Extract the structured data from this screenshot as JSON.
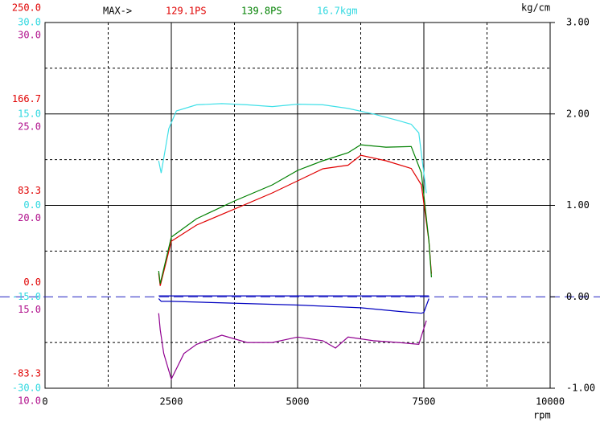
{
  "chart_data": {
    "type": "line",
    "max_label": "MAX->",
    "max_values": [
      {
        "text": "129.1PS",
        "color": "#e00000"
      },
      {
        "text": "139.8PS",
        "color": "#008000"
      },
      {
        "text": "16.7kgm",
        "color": "#30d8e0"
      }
    ],
    "xlabel": "rpm",
    "y2label": "kg/cm",
    "xlim": [
      0,
      10000
    ],
    "xticks": [
      0,
      2500,
      5000,
      7500,
      10000
    ],
    "xminorticks": [
      1250,
      3750,
      6250,
      8750
    ],
    "axes": [
      {
        "color": "#e00000",
        "ylim": [
          -83.3,
          250
        ],
        "yticks": [
          {
            "value": 250,
            "label": "250.0"
          },
          166.7,
          83.3,
          {
            "value": 0,
            "label": "0.0"
          },
          -83.3
        ]
      },
      {
        "color": "#30d8e0",
        "ylim": [
          -30,
          30
        ],
        "yticks": [
          {
            "value": 30,
            "label": "30.0"
          },
          {
            "value": 15,
            "label": "15.0"
          },
          {
            "value": 0,
            "label": "0.0"
          },
          {
            "value": -15,
            "label": "-15.0"
          },
          {
            "value": -30,
            "label": "-30.0"
          }
        ]
      },
      {
        "color": "#b0108c",
        "ylim": [
          10,
          30
        ],
        "yticks": [
          {
            "value": 30,
            "label": "30.0"
          },
          {
            "value": 25,
            "label": "25.0"
          },
          {
            "value": 20,
            "label": "20.0"
          },
          {
            "value": 15,
            "label": "15.0"
          },
          {
            "value": 10,
            "label": "10.0"
          }
        ]
      }
    ],
    "y2lim": [
      -1,
      3
    ],
    "y2ticks": [
      {
        "value": 3,
        "label": "3.00"
      },
      {
        "value": 2,
        "label": "2.00"
      },
      {
        "value": 1,
        "label": "1.00"
      },
      {
        "value": 0,
        "label": "0.00"
      },
      {
        "value": -1,
        "label": "-1.00"
      }
    ],
    "y2minorticks": [
      2.5,
      1.5,
      0.5,
      -0.5
    ],
    "zero_line_color": "#2020c0",
    "series": [
      {
        "color": "#e00000",
        "axis": 0,
        "x": [
          2250,
          2280,
          2500,
          3000,
          3750,
          4500,
          5000,
          5500,
          6000,
          6250,
          6750,
          7250,
          7450,
          7600,
          7650
        ],
        "values": [
          21.4,
          10,
          50.7,
          65.4,
          80,
          94.7,
          105.7,
          116.7,
          120,
          129,
          124,
          117,
          102,
          50.7,
          21
        ]
      },
      {
        "color": "#008000",
        "axis": 0,
        "x": [
          2250,
          2280,
          2500,
          3000,
          3750,
          4500,
          5000,
          5500,
          6000,
          6250,
          6750,
          7250,
          7450,
          7600,
          7650
        ],
        "values": [
          23.6,
          12,
          54.4,
          71.2,
          87.4,
          102,
          115.2,
          124,
          131.3,
          138.6,
          136.4,
          137,
          113,
          50.7,
          17.8
        ]
      },
      {
        "color": "#40e0e8",
        "axis": 1,
        "x": [
          2250,
          2300,
          2450,
          2600,
          3000,
          3500,
          4000,
          4500,
          5000,
          5500,
          6000,
          6500,
          7000,
          7250,
          7400,
          7550
        ],
        "values": [
          7.3,
          5.3,
          12.6,
          15.5,
          16.5,
          16.7,
          16.5,
          16.2,
          16.6,
          16.5,
          15.9,
          15,
          13.9,
          13.3,
          11.9,
          2
        ]
      },
      {
        "color": "#0000c0",
        "axis": "y2",
        "x": [
          2250,
          2300,
          2500,
          5000,
          6250,
          7000,
          7450,
          7500,
          7600
        ],
        "values": [
          -0.02,
          -0.05,
          -0.05,
          -0.09,
          -0.12,
          -0.16,
          -0.18,
          -0.17,
          -0.02
        ]
      },
      {
        "color": "#0000c0",
        "axis": "y2",
        "x": [
          2250,
          7600
        ],
        "values": [
          0.01,
          0.01
        ]
      },
      {
        "color": "#900090",
        "axis": 2,
        "x": [
          2250,
          2280,
          2350,
          2500,
          2750,
          3000,
          3500,
          4000,
          4500,
          5000,
          5500,
          5750,
          6000,
          6500,
          7000,
          7400,
          7550
        ],
        "values": [
          14.1,
          13.2,
          11.9,
          10.5,
          11.9,
          12.4,
          12.9,
          12.5,
          12.5,
          12.8,
          12.6,
          12.2,
          12.8,
          12.6,
          12.5,
          12.4,
          13.7
        ]
      }
    ]
  }
}
